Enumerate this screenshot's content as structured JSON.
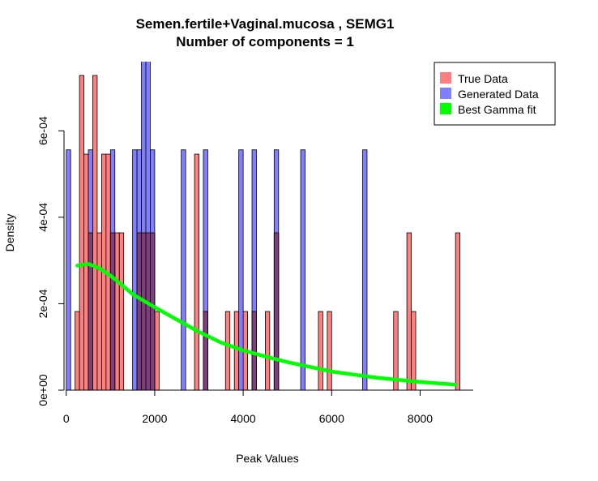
{
  "chart_data": {
    "type": "bar",
    "title": "Semen.fertile+Vaginal.mucosa , SEMG1",
    "subtitle": "Number of components =  1",
    "xlabel": "Peak Values",
    "ylabel": "Density",
    "xlim": [
      -50,
      9200
    ],
    "ylim": [
      0,
      0.00076
    ],
    "x_ticks": [
      0,
      2000,
      4000,
      6000,
      8000
    ],
    "x_tick_labels": [
      "0",
      "2000",
      "4000",
      "6000",
      "8000"
    ],
    "y_ticks": [
      0,
      0.0002,
      0.0004,
      0.0006
    ],
    "y_tick_labels": [
      "0e+00",
      "2e-04",
      "4e-04",
      "6e-04"
    ],
    "bin_width": 100,
    "legend": {
      "position": "top-right",
      "entries": [
        {
          "label": "True Data",
          "color": "#ff7f7f"
        },
        {
          "label": "Generated Data",
          "color": "#7f7fff"
        },
        {
          "label": "Best Gamma fit",
          "color": "#00ff00"
        }
      ]
    },
    "colors": {
      "true": "#ff7f7f",
      "generated": "#7f7fff",
      "overlap": "#7f3f7f",
      "fit": "#00ff00"
    },
    "series": [
      {
        "name": "True Data",
        "bin_starts": [
          200,
          300,
          400,
          500,
          600,
          700,
          800,
          900,
          1000,
          1100,
          1200,
          1600,
          1700,
          1800,
          1900,
          2000,
          2900,
          3100,
          3600,
          3800,
          4000,
          4200,
          4500,
          4700,
          5700,
          5900,
          7400,
          7700,
          7800,
          8800
        ],
        "values": [
          0.000182,
          0.000728,
          0.000546,
          0.000364,
          0.000728,
          0.000364,
          0.000546,
          0.000546,
          0.000364,
          0.000364,
          0.000364,
          0.000364,
          0.000364,
          0.000364,
          0.000364,
          0.000182,
          0.000546,
          0.000182,
          0.000182,
          0.000182,
          0.000182,
          0.000182,
          0.000182,
          0.000364,
          0.000182,
          0.000182,
          0.000182,
          0.000364,
          0.000182,
          0.000364
        ]
      },
      {
        "name": "Generated Data",
        "bin_starts": [
          0,
          500,
          1000,
          1500,
          1600,
          1700,
          1800,
          1900,
          2600,
          3100,
          3900,
          4200,
          4700,
          5300,
          6700
        ],
        "values": [
          0.000556,
          0.000556,
          0.000556,
          0.000556,
          0.000556,
          0.00078,
          0.00078,
          0.000556,
          0.000556,
          0.000556,
          0.000556,
          0.000556,
          0.000556,
          0.000556,
          0.000556
        ]
      }
    ],
    "fit_curve": {
      "name": "Best Gamma fit",
      "x": [
        250,
        500,
        750,
        1000,
        1250,
        1500,
        2000,
        2500,
        3000,
        3500,
        4000,
        4500,
        5000,
        5500,
        6000,
        6500,
        7000,
        7500,
        8000,
        8500,
        8800
      ],
      "y": [
        0.000288,
        0.000292,
        0.000282,
        0.000265,
        0.000244,
        0.000222,
        0.000192,
        0.000163,
        0.000135,
        0.00011,
        9.2e-05,
        7.8e-05,
        6.5e-05,
        5.4e-05,
        4.3e-05,
        3.6e-05,
        2.9e-05,
        2.4e-05,
        1.9e-05,
        1.5e-05,
        1.3e-05
      ]
    }
  }
}
